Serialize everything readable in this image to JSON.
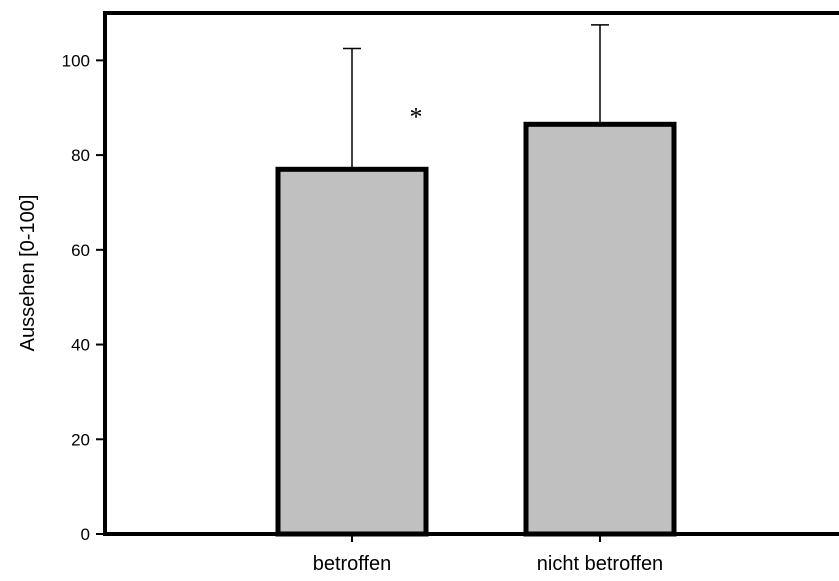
{
  "chart_data": {
    "type": "bar",
    "categories": [
      "betroffen",
      "nicht betroffen"
    ],
    "values": [
      77,
      86.5
    ],
    "error_upper": [
      102.5,
      107.5
    ],
    "ylabel": "Aussehen [0-100]",
    "xlabel": "",
    "ylim": [
      0,
      110
    ],
    "yticks": [
      0,
      20,
      40,
      60,
      80,
      100
    ],
    "annotations": [
      {
        "category_index": 0,
        "text": "*"
      }
    ],
    "bar_color": "#c0c0c0",
    "grid": false,
    "legend": "none"
  }
}
